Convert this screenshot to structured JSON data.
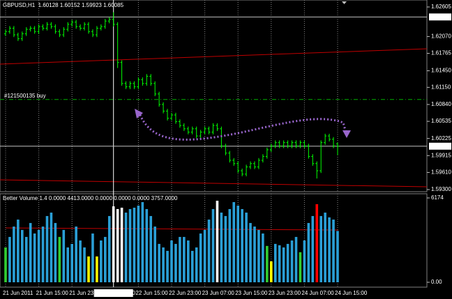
{
  "chart_data": [
    {
      "type": "ohlc",
      "title": "GBPUSD,H1  1.60128 1.60152 1.59923 1.60085",
      "color": "#00ff00",
      "categories": [
        "21 Jun 2011",
        null,
        null,
        null,
        null,
        null,
        null,
        null,
        "21 Jun 15:00",
        null,
        null,
        null,
        null,
        null,
        null,
        null,
        "21 Jun 23:00",
        null,
        null,
        null,
        null,
        null,
        null,
        null,
        null,
        null,
        "2011.06.22 9:00",
        null,
        null,
        null,
        null,
        null,
        "22 Jun 15:00",
        null,
        null,
        null,
        null,
        null,
        null,
        null,
        "22 Jun 23:00",
        null,
        null,
        null,
        null,
        null,
        null,
        null,
        "23 Jun 07:00",
        null,
        null,
        null,
        null,
        null,
        null,
        null,
        "23 Jun 15:00",
        null,
        null,
        null,
        null,
        null,
        null,
        null,
        "23 Jun 23:00",
        null,
        null,
        null,
        null,
        null,
        null,
        null,
        "24 Jun 07:00",
        null,
        null,
        null,
        null,
        null,
        null,
        null,
        "24 Jun 15:00"
      ],
      "open": [
        1.6212,
        1.6216,
        1.6222,
        1.621,
        1.6203,
        1.6212,
        1.622,
        1.6222,
        1.6216,
        1.6225,
        1.6222,
        1.6229,
        1.6225,
        1.6216,
        1.621,
        1.622,
        1.6229,
        1.6233,
        1.6225,
        1.6222,
        1.6229,
        1.6216,
        1.621,
        1.6222,
        1.6225,
        1.6235,
        1.6238,
        1.6229,
        1.616,
        1.6122,
        1.6116,
        1.6122,
        1.6116,
        1.6129,
        1.6122,
        1.6135,
        1.6122,
        1.6103,
        1.6084,
        1.6072,
        1.6059,
        1.6065,
        1.6053,
        1.6046,
        1.604,
        1.6034,
        1.604,
        1.6027,
        1.6034,
        1.604,
        1.6034,
        1.6046,
        1.604,
        1.6009,
        1.5996,
        1.5983,
        1.5977,
        1.5964,
        1.5958,
        1.5971,
        1.5977,
        1.5971,
        1.5983,
        1.599,
        1.6002,
        1.6009,
        1.6015,
        1.6009,
        1.6015,
        1.6009,
        1.6015,
        1.6009,
        1.6015,
        1.6009,
        1.599,
        1.5977,
        1.5964,
        1.6015,
        1.6027,
        1.6021,
        1.60128
      ],
      "high": [
        1.622,
        1.6226,
        1.6226,
        1.6214,
        1.6216,
        1.6224,
        1.6226,
        1.6226,
        1.6229,
        1.6229,
        1.6233,
        1.6233,
        1.6229,
        1.622,
        1.6224,
        1.6233,
        1.6237,
        1.6237,
        1.6229,
        1.6233,
        1.6233,
        1.622,
        1.6226,
        1.6229,
        1.6239,
        1.6242,
        1.6251,
        1.6233,
        1.6164,
        1.6126,
        1.6126,
        1.6126,
        1.6133,
        1.6133,
        1.6139,
        1.6139,
        1.6126,
        1.6107,
        1.6088,
        1.6076,
        1.6069,
        1.6069,
        1.6057,
        1.605,
        1.6044,
        1.6044,
        1.6044,
        1.6038,
        1.6044,
        1.6044,
        1.605,
        1.605,
        1.6044,
        1.6013,
        1.6,
        1.5987,
        1.5981,
        1.5968,
        1.5975,
        1.5981,
        1.5981,
        1.5987,
        1.5994,
        1.6006,
        1.6013,
        1.6019,
        1.6019,
        1.6019,
        1.6019,
        1.6019,
        1.6019,
        1.6019,
        1.6019,
        1.6013,
        1.5994,
        1.5981,
        1.6019,
        1.6031,
        1.6031,
        1.6025,
        1.60152
      ],
      "low": [
        1.6208,
        1.6212,
        1.6206,
        1.6199,
        1.6199,
        1.6208,
        1.6216,
        1.6212,
        1.6212,
        1.6218,
        1.6218,
        1.6221,
        1.6212,
        1.6206,
        1.6206,
        1.6216,
        1.6225,
        1.6221,
        1.6218,
        1.6218,
        1.6212,
        1.6206,
        1.6206,
        1.6218,
        1.6221,
        1.6231,
        1.6225,
        1.615,
        1.6118,
        1.6112,
        1.6112,
        1.6112,
        1.6112,
        1.6118,
        1.6118,
        1.6118,
        1.6099,
        1.608,
        1.6068,
        1.6055,
        1.6055,
        1.6049,
        1.6042,
        1.6036,
        1.603,
        1.603,
        1.6023,
        1.6023,
        1.603,
        1.603,
        1.603,
        1.6036,
        1.6005,
        1.5992,
        1.5979,
        1.5973,
        1.596,
        1.5954,
        1.5954,
        1.5967,
        1.5967,
        1.5967,
        1.5979,
        1.5986,
        1.5998,
        1.6005,
        1.6005,
        1.6005,
        1.6005,
        1.6005,
        1.6005,
        1.6005,
        1.6005,
        1.5986,
        1.5973,
        1.595,
        1.596,
        1.6011,
        1.6017,
        1.6005,
        1.59923
      ],
      "close": [
        1.6216,
        1.6222,
        1.621,
        1.6203,
        1.6212,
        1.622,
        1.6222,
        1.6216,
        1.6225,
        1.6222,
        1.6229,
        1.6225,
        1.6216,
        1.621,
        1.622,
        1.6229,
        1.6233,
        1.6225,
        1.6222,
        1.6229,
        1.6216,
        1.621,
        1.6222,
        1.6225,
        1.6235,
        1.6238,
        1.6229,
        1.616,
        1.6122,
        1.6116,
        1.6122,
        1.6116,
        1.6129,
        1.6122,
        1.6135,
        1.6122,
        1.6103,
        1.6084,
        1.6072,
        1.6059,
        1.6065,
        1.6053,
        1.6046,
        1.604,
        1.6034,
        1.604,
        1.6027,
        1.6034,
        1.604,
        1.6034,
        1.6046,
        1.604,
        1.6009,
        1.5996,
        1.5983,
        1.5977,
        1.5964,
        1.5958,
        1.5971,
        1.5977,
        1.5971,
        1.5983,
        1.599,
        1.6002,
        1.6009,
        1.6015,
        1.6009,
        1.6015,
        1.6009,
        1.6015,
        1.6009,
        1.6015,
        1.6009,
        1.599,
        1.5977,
        1.5964,
        1.6015,
        1.6027,
        1.6021,
        1.6009,
        1.60085
      ],
      "ylim": [
        1.59262,
        1.62731
      ],
      "yticks": [
        1.62605,
        {
          "value": 1.6207,
          "label": "1.62070"
        },
        1.61765,
        {
          "value": 1.6145,
          "label": "1.61450"
        },
        {
          "value": 1.6115,
          "label": "1.61150"
        },
        {
          "value": 1.6084,
          "label": "1.60840"
        },
        1.60535,
        1.60225,
        1.59915,
        {
          "value": 1.5961,
          "label": "1.59610"
        },
        {
          "value": 1.593,
          "label": "1.59300"
        }
      ],
      "markers": [
        1.62424,
        1.60085
      ],
      "order_line": {
        "label": "#121500135 buy",
        "value": 1.6093
      }
    },
    {
      "type": "bar",
      "title": "Better Volume 1.4 0.0000 4413.0000 0.0000 0.0000 0.0000 3757.0000",
      "values": [
        2550,
        3320,
        4080,
        4590,
        3830,
        3320,
        4340,
        3570,
        3830,
        4080,
        4850,
        5100,
        4340,
        3320,
        3830,
        2550,
        2810,
        4080,
        3060,
        2550,
        1890,
        3570,
        1890,
        3060,
        3320,
        4850,
        5560,
        5360,
        5460,
        5100,
        5360,
        5460,
        5610,
        5870,
        5360,
        4850,
        4080,
        2810,
        2550,
        2300,
        3060,
        2810,
        3320,
        3320,
        3060,
        2300,
        2550,
        3570,
        3830,
        4590,
        5360,
        5970,
        5100,
        4850,
        5360,
        5870,
        5610,
        5360,
        5100,
        4340,
        4080,
        3830,
        3570,
        2660,
        1530,
        2810,
        2710,
        2550,
        2810,
        3060,
        3320,
        2200,
        3060,
        4340,
        4850,
        5720,
        4850,
        5100,
        4750,
        4590,
        3757
      ],
      "colors": [
        "#32cd32",
        "#2a9fd6",
        "#2a9fd6",
        "#2a9fd6",
        "#2a9fd6",
        "#2a9fd6",
        "#2a9fd6",
        "#2a9fd6",
        "#2a9fd6",
        "#2a9fd6",
        "#2a9fd6",
        "#2a9fd6",
        "#2a9fd6",
        "#32cd32",
        "#2a9fd6",
        "#2a9fd6",
        "#2a9fd6",
        "#2a9fd6",
        "#2a9fd6",
        "#2a9fd6",
        "#ffff00",
        "#2a9fd6",
        "#ffff00",
        "#2a9fd6",
        "#2a9fd6",
        "#2a9fd6",
        "#ffffff",
        "#ffffff",
        "#ffffff",
        "#2a9fd6",
        "#2a9fd6",
        "#2a9fd6",
        "#2a9fd6",
        "#2a9fd6",
        "#2a9fd6",
        "#2a9fd6",
        "#2a9fd6",
        "#2a9fd6",
        "#2a9fd6",
        "#2a9fd6",
        "#2a9fd6",
        "#2a9fd6",
        "#2a9fd6",
        "#2a9fd6",
        "#2a9fd6",
        "#2a9fd6",
        "#2a9fd6",
        "#2a9fd6",
        "#2a9fd6",
        "#2a9fd6",
        "#2a9fd6",
        "#ffffff",
        "#2a9fd6",
        "#2a9fd6",
        "#2a9fd6",
        "#2a9fd6",
        "#2a9fd6",
        "#2a9fd6",
        "#2a9fd6",
        "#2a9fd6",
        "#2a9fd6",
        "#2a9fd6",
        "#2a9fd6",
        "#32cd32",
        "#ffff00",
        "#2a9fd6",
        "#2a9fd6",
        "#2a9fd6",
        "#2a9fd6",
        "#2a9fd6",
        "#2a9fd6",
        "#32cd32",
        "#2a9fd6",
        "#2a9fd6",
        "#2a9fd6",
        "#ff0000",
        "#2a9fd6",
        "#2a9fd6",
        "#2a9fd6",
        "#2a9fd6",
        "#2a9fd6"
      ],
      "ylim": [
        0,
        6174
      ],
      "yticks": [
        6174,
        {
          "value": 0,
          "label": "0.00"
        }
      ]
    }
  ]
}
